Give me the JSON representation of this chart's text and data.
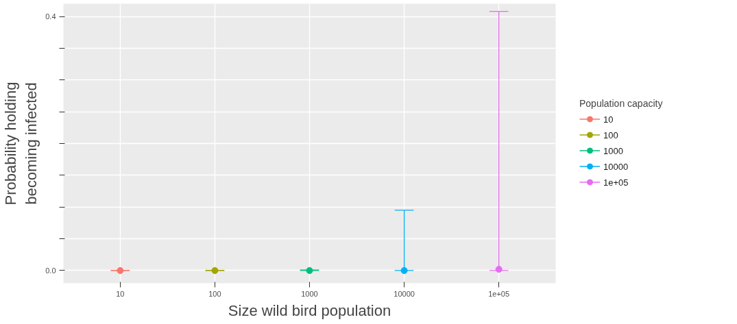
{
  "chart_data": {
    "type": "scatter",
    "xlabel": "Size wild bird population",
    "ylabel": "Probability holding\nbecoming infected",
    "legend_title": "Population capacity",
    "categories": [
      "10",
      "100",
      "1000",
      "10000",
      "1e+05"
    ],
    "ylim": [
      -0.02,
      0.42
    ],
    "yticks": [
      {
        "value": 0.0,
        "label": "0.0"
      },
      {
        "value": 0.05,
        "label": null
      },
      {
        "value": 0.1,
        "label": null
      },
      {
        "value": 0.15,
        "label": null
      },
      {
        "value": 0.2,
        "label": null
      },
      {
        "value": 0.25,
        "label": null
      },
      {
        "value": 0.3,
        "label": null
      },
      {
        "value": 0.35,
        "label": null
      },
      {
        "value": 0.4,
        "label": "0.4"
      }
    ],
    "series": [
      {
        "name": "10",
        "color": "#f8766d",
        "values": [
          0,
          null,
          null,
          null,
          null
        ],
        "errors": [
          [
            0,
            0
          ],
          null,
          null,
          null,
          null
        ]
      },
      {
        "name": "100",
        "color": "#a3a500",
        "values": [
          null,
          0,
          null,
          null,
          null
        ],
        "errors": [
          null,
          [
            0,
            0
          ],
          null,
          null,
          null
        ]
      },
      {
        "name": "1000",
        "color": "#00bf7d",
        "values": [
          null,
          null,
          0,
          null,
          null
        ],
        "errors": [
          null,
          null,
          [
            0,
            0.001
          ],
          null,
          null
        ]
      },
      {
        "name": "10000",
        "color": "#00b0f6",
        "values": [
          null,
          null,
          null,
          0,
          null
        ],
        "errors": [
          null,
          null,
          null,
          [
            0,
            0.095
          ],
          null
        ]
      },
      {
        "name": "1e+05",
        "color": "#e76bf3",
        "values": [
          null,
          null,
          null,
          null,
          0.002
        ],
        "errors": [
          null,
          null,
          null,
          null,
          [
            0,
            0.408
          ]
        ]
      }
    ],
    "grid": true,
    "legend": "right",
    "marker": "circle"
  }
}
